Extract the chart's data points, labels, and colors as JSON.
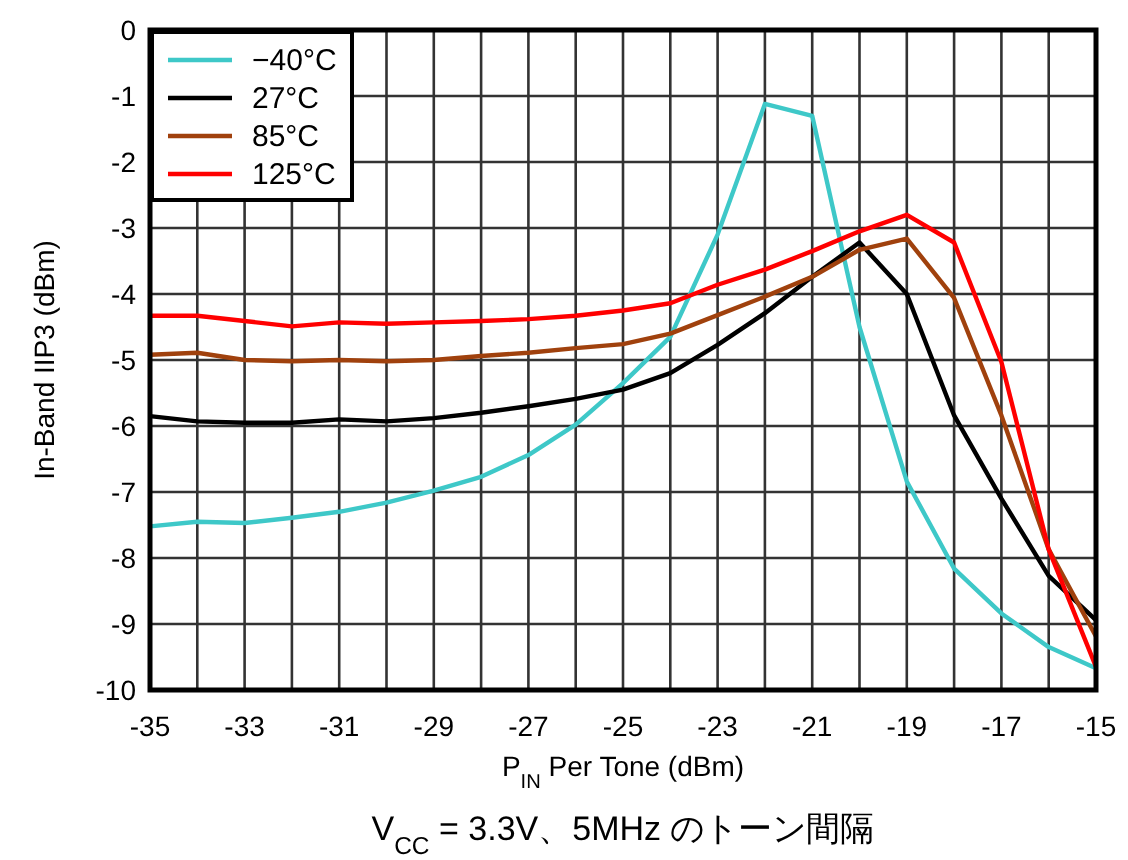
{
  "chart_data": {
    "type": "line",
    "xlabel": "P$_{IN}$ Per Tone (dBm)",
    "ylabel": "In-Band IIP3 (dBm)",
    "annotations": [
      "V$_{CC}$ = 3.3V、5MHz のトーン間隔"
    ],
    "x": [
      -35,
      -34,
      -33,
      -32,
      -31,
      -30,
      -29,
      -28,
      -27,
      -26,
      -25,
      -24,
      -23,
      -22,
      -21,
      -20,
      -19,
      -18,
      -17,
      -16,
      -15
    ],
    "series": [
      {
        "name": "−40°C",
        "color": "#3ec8c8",
        "values": [
          -7.52,
          -7.45,
          -7.47,
          -7.39,
          -7.3,
          -7.16,
          -6.98,
          -6.77,
          -6.44,
          -5.98,
          -5.35,
          -4.65,
          -3.1,
          -1.12,
          -1.3,
          -4.5,
          -6.84,
          -8.16,
          -8.84,
          -9.35,
          -9.67
        ]
      },
      {
        "name": "27°C",
        "color": "#000000",
        "values": [
          -5.85,
          -5.93,
          -5.95,
          -5.95,
          -5.9,
          -5.93,
          -5.88,
          -5.8,
          -5.7,
          -5.59,
          -5.45,
          -5.2,
          -4.77,
          -4.29,
          -3.74,
          -3.22,
          -4.0,
          -5.84,
          -7.1,
          -8.27,
          -8.94
        ]
      },
      {
        "name": "85°C",
        "color": "#a0410d",
        "values": [
          -4.92,
          -4.89,
          -5.0,
          -5.02,
          -5.0,
          -5.02,
          -5.0,
          -4.94,
          -4.89,
          -4.82,
          -4.76,
          -4.6,
          -4.32,
          -4.04,
          -3.74,
          -3.33,
          -3.16,
          -4.06,
          -5.84,
          -7.87,
          -9.19
        ]
      },
      {
        "name": "125°C",
        "color": "#ff0000",
        "values": [
          -4.33,
          -4.33,
          -4.41,
          -4.49,
          -4.43,
          -4.45,
          -4.43,
          -4.41,
          -4.38,
          -4.33,
          -4.25,
          -4.14,
          -3.86,
          -3.63,
          -3.35,
          -3.05,
          -2.8,
          -3.22,
          -5.03,
          -7.87,
          -9.65
        ]
      }
    ],
    "xlim": [
      -35,
      -15
    ],
    "xticks": [
      -35,
      {
        "value": -34,
        "label": null
      },
      -33,
      {
        "value": -32,
        "label": null
      },
      -31,
      {
        "value": -30,
        "label": null
      },
      -29,
      {
        "value": -28,
        "label": null
      },
      -27,
      {
        "value": -26,
        "label": null
      },
      -25,
      {
        "value": -24,
        "label": null
      },
      -23,
      {
        "value": -22,
        "label": null
      },
      -21,
      {
        "value": -20,
        "label": null
      },
      -19,
      {
        "value": -18,
        "label": null
      },
      -17,
      {
        "value": -16,
        "label": null
      },
      -15
    ],
    "ylim": [
      -10,
      0
    ],
    "yticks": [
      -10,
      -9,
      -8,
      -7,
      -6,
      -5,
      -4,
      -3,
      -2,
      -1,
      0
    ],
    "grid": true,
    "legend": "top left",
    "marker": "none",
    "line_style": "solid"
  }
}
